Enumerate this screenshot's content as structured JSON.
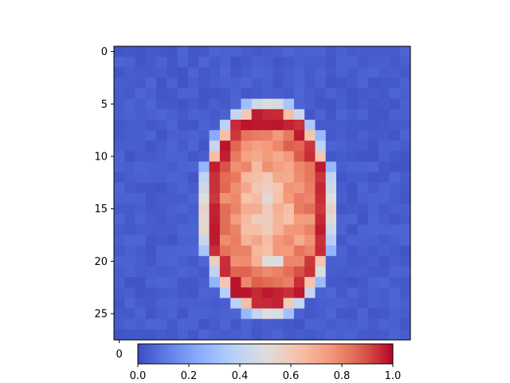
{
  "chart_data": {
    "type": "heatmap",
    "title": "",
    "xlabel": "",
    "ylabel": "",
    "colormap": "coolwarm",
    "vmin": 0.0,
    "vmax": 1.0,
    "rows": 28,
    "cols": 28,
    "yticks": [
      0,
      5,
      10,
      15,
      20,
      25
    ],
    "xticks": [
      0
    ],
    "colorbar_ticks": [
      "0.0",
      "0.2",
      "0.4",
      "0.6",
      "0.8",
      "1.0"
    ],
    "colorbar_tick_values": [
      0.0,
      0.2,
      0.4,
      0.6,
      0.8,
      1.0
    ],
    "shape": {
      "center_row": 15.0,
      "center_col": 14.0,
      "radius_rows": 9.5,
      "radius_cols": 5.8,
      "rim_width": 1.1,
      "inner_level": 0.7,
      "edge_level": 0.98,
      "background_level": 0.02,
      "hole_row": 20,
      "hole_col": 14,
      "hole_level": 0.5
    }
  }
}
